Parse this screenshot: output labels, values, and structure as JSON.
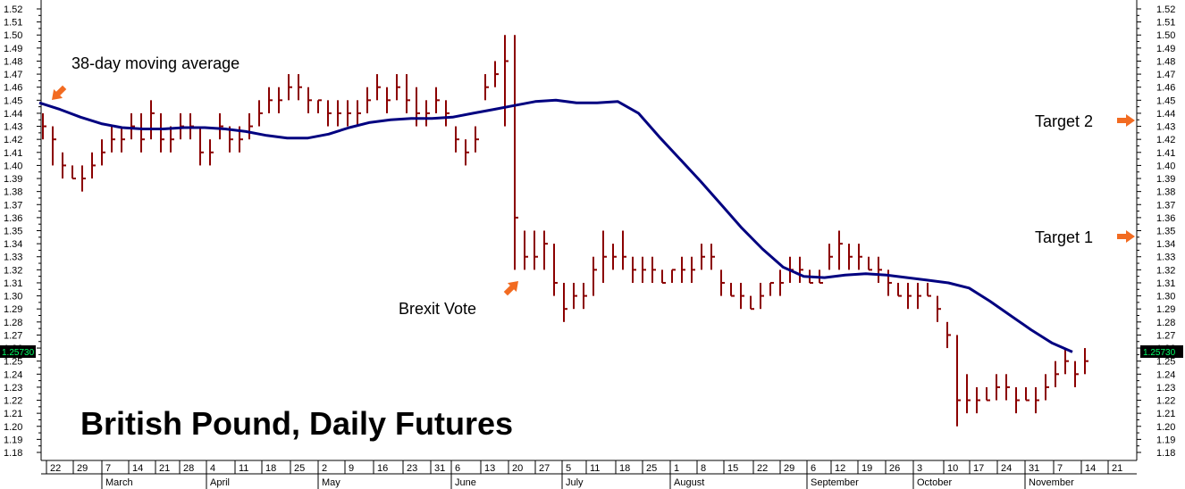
{
  "chart_data": {
    "type": "ohlc-bar",
    "title": "British Pound, Daily Futures",
    "ylim": [
      1.175,
      1.525
    ],
    "yticks": [
      "1.18",
      "1.19",
      "1.20",
      "1.21",
      "1.22",
      "1.23",
      "1.24",
      "1.25",
      "1.26",
      "1.27",
      "1.28",
      "1.29",
      "1.30",
      "1.31",
      "1.32",
      "1.33",
      "1.34",
      "1.35",
      "1.36",
      "1.37",
      "1.38",
      "1.39",
      "1.40",
      "1.41",
      "1.42",
      "1.43",
      "1.44",
      "1.45",
      "1.46",
      "1.47",
      "1.48",
      "1.49",
      "1.50",
      "1.51",
      "1.52"
    ],
    "last_price": "1.25730",
    "xticks": [
      "22",
      "29",
      "7",
      "14",
      "21",
      "28",
      "4",
      "11",
      "18",
      "25",
      "2",
      "9",
      "16",
      "23",
      "31",
      "6",
      "13",
      "20",
      "27",
      "5",
      "11",
      "18",
      "25",
      "1",
      "8",
      "15",
      "22",
      "29",
      "6",
      "12",
      "19",
      "26",
      "3",
      "10",
      "17",
      "24",
      "31",
      "7",
      "14",
      "21"
    ],
    "months": [
      "March",
      "April",
      "May",
      "June",
      "July",
      "August",
      "September",
      "October",
      "November"
    ],
    "grid": false,
    "series": [
      {
        "name": "38-day moving average",
        "color": "#000080",
        "values": [
          1.448,
          1.443,
          1.437,
          1.432,
          1.429,
          1.428,
          1.428,
          1.429,
          1.429,
          1.428,
          1.426,
          1.423,
          1.421,
          1.421,
          1.424,
          1.429,
          1.433,
          1.435,
          1.436,
          1.436,
          1.437,
          1.44,
          1.443,
          1.446,
          1.449,
          1.45,
          1.448,
          1.448,
          1.449,
          1.44,
          1.422,
          1.405,
          1.388,
          1.37,
          1.352,
          1.336,
          1.322,
          1.315,
          1.314,
          1.316,
          1.317,
          1.316,
          1.314,
          1.312,
          1.31,
          1.306,
          1.296,
          1.285,
          1.274,
          1.264,
          1.257
        ]
      }
    ],
    "bars": [
      [
        1.44,
        1.42,
        1.43
      ],
      [
        1.43,
        1.4,
        1.42
      ],
      [
        1.41,
        1.39,
        1.4
      ],
      [
        1.4,
        1.39,
        1.39
      ],
      [
        1.4,
        1.38,
        1.39
      ],
      [
        1.41,
        1.39,
        1.4
      ],
      [
        1.42,
        1.4,
        1.41
      ],
      [
        1.43,
        1.41,
        1.42
      ],
      [
        1.43,
        1.41,
        1.42
      ],
      [
        1.44,
        1.42,
        1.43
      ],
      [
        1.44,
        1.41,
        1.42
      ],
      [
        1.45,
        1.42,
        1.44
      ],
      [
        1.44,
        1.41,
        1.42
      ],
      [
        1.43,
        1.41,
        1.42
      ],
      [
        1.44,
        1.42,
        1.43
      ],
      [
        1.44,
        1.42,
        1.43
      ],
      [
        1.43,
        1.4,
        1.41
      ],
      [
        1.42,
        1.4,
        1.41
      ],
      [
        1.44,
        1.42,
        1.43
      ],
      [
        1.43,
        1.41,
        1.42
      ],
      [
        1.43,
        1.41,
        1.42
      ],
      [
        1.44,
        1.42,
        1.43
      ],
      [
        1.45,
        1.43,
        1.44
      ],
      [
        1.46,
        1.44,
        1.45
      ],
      [
        1.46,
        1.44,
        1.45
      ],
      [
        1.47,
        1.45,
        1.46
      ],
      [
        1.47,
        1.45,
        1.46
      ],
      [
        1.46,
        1.44,
        1.45
      ],
      [
        1.45,
        1.44,
        1.45
      ],
      [
        1.45,
        1.43,
        1.44
      ],
      [
        1.45,
        1.43,
        1.44
      ],
      [
        1.45,
        1.43,
        1.44
      ],
      [
        1.45,
        1.43,
        1.44
      ],
      [
        1.46,
        1.44,
        1.45
      ],
      [
        1.47,
        1.45,
        1.46
      ],
      [
        1.46,
        1.44,
        1.45
      ],
      [
        1.47,
        1.45,
        1.46
      ],
      [
        1.47,
        1.44,
        1.45
      ],
      [
        1.46,
        1.43,
        1.44
      ],
      [
        1.45,
        1.43,
        1.44
      ],
      [
        1.46,
        1.44,
        1.45
      ],
      [
        1.45,
        1.43,
        1.44
      ],
      [
        1.43,
        1.41,
        1.42
      ],
      [
        1.42,
        1.4,
        1.41
      ],
      [
        1.43,
        1.41,
        1.42
      ],
      [
        1.47,
        1.45,
        1.46
      ],
      [
        1.48,
        1.46,
        1.47
      ],
      [
        1.5,
        1.43,
        1.48
      ],
      [
        1.5,
        1.32,
        1.36
      ],
      [
        1.35,
        1.32,
        1.33
      ],
      [
        1.35,
        1.32,
        1.33
      ],
      [
        1.35,
        1.32,
        1.34
      ],
      [
        1.34,
        1.3,
        1.31
      ],
      [
        1.31,
        1.28,
        1.29
      ],
      [
        1.31,
        1.29,
        1.3
      ],
      [
        1.31,
        1.29,
        1.3
      ],
      [
        1.33,
        1.3,
        1.32
      ],
      [
        1.35,
        1.31,
        1.33
      ],
      [
        1.34,
        1.32,
        1.33
      ],
      [
        1.35,
        1.32,
        1.33
      ],
      [
        1.33,
        1.31,
        1.32
      ],
      [
        1.33,
        1.31,
        1.32
      ],
      [
        1.33,
        1.31,
        1.32
      ],
      [
        1.32,
        1.31,
        1.31
      ],
      [
        1.32,
        1.31,
        1.32
      ],
      [
        1.33,
        1.31,
        1.32
      ],
      [
        1.33,
        1.31,
        1.32
      ],
      [
        1.34,
        1.32,
        1.33
      ],
      [
        1.34,
        1.32,
        1.33
      ],
      [
        1.32,
        1.3,
        1.31
      ],
      [
        1.31,
        1.3,
        1.3
      ],
      [
        1.31,
        1.29,
        1.3
      ],
      [
        1.3,
        1.29,
        1.29
      ],
      [
        1.31,
        1.29,
        1.3
      ],
      [
        1.31,
        1.3,
        1.31
      ],
      [
        1.32,
        1.3,
        1.31
      ],
      [
        1.33,
        1.31,
        1.32
      ],
      [
        1.33,
        1.31,
        1.32
      ],
      [
        1.32,
        1.31,
        1.31
      ],
      [
        1.32,
        1.31,
        1.31
      ],
      [
        1.34,
        1.32,
        1.33
      ],
      [
        1.35,
        1.32,
        1.34
      ],
      [
        1.34,
        1.32,
        1.33
      ],
      [
        1.34,
        1.32,
        1.33
      ],
      [
        1.33,
        1.32,
        1.32
      ],
      [
        1.33,
        1.31,
        1.32
      ],
      [
        1.32,
        1.3,
        1.31
      ],
      [
        1.31,
        1.3,
        1.3
      ],
      [
        1.31,
        1.29,
        1.3
      ],
      [
        1.31,
        1.29,
        1.3
      ],
      [
        1.31,
        1.3,
        1.3
      ],
      [
        1.3,
        1.28,
        1.29
      ],
      [
        1.28,
        1.26,
        1.27
      ],
      [
        1.27,
        1.2,
        1.22
      ],
      [
        1.24,
        1.21,
        1.22
      ],
      [
        1.23,
        1.21,
        1.22
      ],
      [
        1.23,
        1.22,
        1.22
      ],
      [
        1.24,
        1.22,
        1.23
      ],
      [
        1.24,
        1.22,
        1.23
      ],
      [
        1.23,
        1.21,
        1.22
      ],
      [
        1.23,
        1.22,
        1.22
      ],
      [
        1.23,
        1.21,
        1.22
      ],
      [
        1.24,
        1.22,
        1.23
      ],
      [
        1.25,
        1.23,
        1.24
      ],
      [
        1.26,
        1.24,
        1.25
      ],
      [
        1.25,
        1.23,
        1.24
      ],
      [
        1.26,
        1.24,
        1.25
      ]
    ],
    "annotations": [
      {
        "text": "38-day moving average",
        "x_index": 2,
        "y": 1.478,
        "arrow": "down-left"
      },
      {
        "text": "Brexit Vote",
        "x_index": 46,
        "y": 1.29,
        "arrow": "up-right"
      },
      {
        "text": "Target 2",
        "y": 1.43,
        "arrow": "right"
      },
      {
        "text": "Target 1",
        "y": 1.34,
        "arrow": "right"
      }
    ]
  },
  "colors": {
    "bars": "#8b0000",
    "ma": "#000080",
    "arrow": "#f26b21",
    "badge_bg": "#000000",
    "badge_text": "#00ff66"
  }
}
